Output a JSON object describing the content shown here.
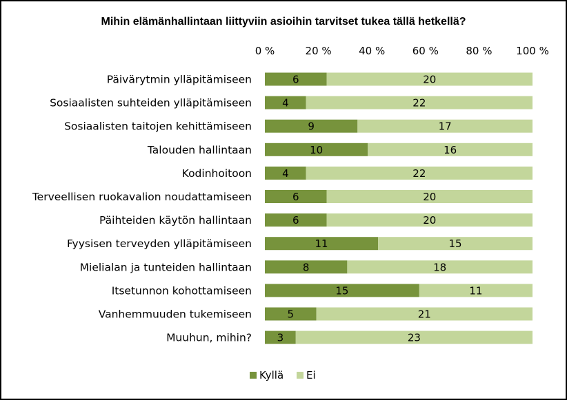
{
  "chart_data": {
    "type": "bar",
    "orientation": "horizontal",
    "stacked": "percent",
    "title": "Mihin elämänhallintaan liittyviin asioihin tarvitset tukea tällä hetkellä?",
    "xlabel": "",
    "ylabel": "",
    "xlim": [
      0,
      100
    ],
    "x_ticks": [
      "0 %",
      "20 %",
      "40 %",
      "60 %",
      "80 %",
      "100 %"
    ],
    "x_axis_position": "top",
    "grid": false,
    "legend_position": "bottom",
    "categories": [
      "Päivärytmin ylläpitämiseen",
      "Sosiaalisten suhteiden ylläpitämiseen",
      "Sosiaalisten taitojen kehittämiseen",
      "Talouden hallintaan",
      "Kodinhoitoon",
      "Terveellisen ruokavalion noudattamiseen",
      "Päihteiden käytön hallintaan",
      "Fyysisen terveyden ylläpitämiseen",
      "Mielialan ja tunteiden hallintaan",
      "Itsetunnon kohottamiseen",
      "Vanhemmuuden tukemiseen",
      "Muuhun, mihin?"
    ],
    "series": [
      {
        "name": "Kyllä",
        "color": "#77933c",
        "values": [
          6,
          4,
          9,
          10,
          4,
          6,
          6,
          11,
          8,
          15,
          5,
          3
        ]
      },
      {
        "name": "Ei",
        "color": "#c3d69b",
        "values": [
          20,
          22,
          17,
          16,
          22,
          20,
          20,
          15,
          18,
          11,
          21,
          23
        ]
      }
    ]
  }
}
